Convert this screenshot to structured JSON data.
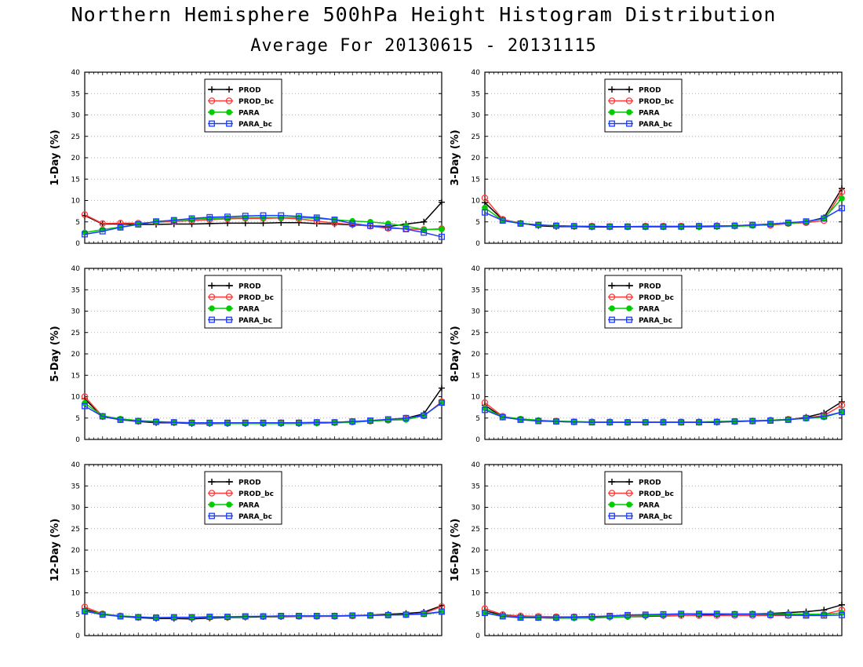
{
  "title": "Northern Hemisphere 500hPa Height Histogram Distribution",
  "subtitle": "Average For 20130615 - 20131115",
  "series_style": [
    {
      "name": "PROD",
      "color": "#000000",
      "marker": "plus"
    },
    {
      "name": "PROD_bc",
      "color": "#ff3b3b",
      "marker": "open-circle"
    },
    {
      "name": "PARA",
      "color": "#00cc00",
      "marker": "filled-circle"
    },
    {
      "name": "PARA_bc",
      "color": "#1e3cff",
      "marker": "open-square"
    }
  ],
  "chart_data": [
    {
      "type": "line",
      "ylabel": "1-Day (%)",
      "ylim": [
        0,
        40
      ],
      "yticks": [
        0,
        5,
        10,
        15,
        20,
        25,
        30,
        35,
        40
      ],
      "grid": true,
      "legend": "top-center",
      "x": [
        1,
        2,
        3,
        4,
        5,
        6,
        7,
        8,
        9,
        10,
        11,
        12,
        13,
        14,
        15,
        16,
        17,
        18,
        19,
        20,
        21
      ],
      "series": [
        {
          "name": "PROD",
          "values": [
            6.5,
            4.5,
            4.5,
            4.4,
            4.4,
            4.5,
            4.5,
            4.6,
            4.7,
            4.7,
            4.7,
            4.8,
            4.8,
            4.6,
            4.5,
            4.3,
            4.1,
            3.9,
            4.5,
            5.0,
            9.6
          ]
        },
        {
          "name": "PROD_bc",
          "values": [
            6.7,
            4.6,
            4.7,
            4.7,
            4.9,
            5.1,
            5.3,
            5.5,
            5.7,
            5.8,
            5.8,
            5.9,
            5.7,
            5.2,
            4.7,
            4.4,
            4.0,
            3.5,
            3.4,
            3.2,
            3.4
          ]
        },
        {
          "name": "PARA",
          "values": [
            2.5,
            3.2,
            3.8,
            4.5,
            5.0,
            5.4,
            5.6,
            5.8,
            5.9,
            6.0,
            6.0,
            6.0,
            6.0,
            5.8,
            5.5,
            5.2,
            5.0,
            4.6,
            4.0,
            3.2,
            3.3
          ]
        },
        {
          "name": "PARA_bc",
          "values": [
            2.1,
            2.8,
            3.7,
            4.4,
            5.1,
            5.4,
            5.8,
            6.1,
            6.2,
            6.4,
            6.5,
            6.5,
            6.3,
            6.0,
            5.5,
            4.6,
            4.1,
            3.7,
            3.3,
            2.5,
            1.5
          ]
        }
      ]
    },
    {
      "type": "line",
      "ylabel": "3-Day (%)",
      "ylim": [
        0,
        40
      ],
      "yticks": [
        0,
        5,
        10,
        15,
        20,
        25,
        30,
        35,
        40
      ],
      "grid": true,
      "legend": "top-center",
      "x": [
        1,
        2,
        3,
        4,
        5,
        6,
        7,
        8,
        9,
        10,
        11,
        12,
        13,
        14,
        15,
        16,
        17,
        18,
        19,
        20,
        21
      ],
      "series": [
        {
          "name": "PROD",
          "values": [
            9.5,
            5.5,
            4.7,
            4.1,
            3.9,
            3.9,
            3.8,
            3.8,
            3.8,
            3.8,
            3.8,
            3.8,
            3.8,
            3.9,
            4.0,
            4.2,
            4.5,
            4.7,
            5.0,
            6.0,
            12.8
          ]
        },
        {
          "name": "PROD_bc",
          "values": [
            10.6,
            5.6,
            4.6,
            4.3,
            4.1,
            4.0,
            4.0,
            3.9,
            3.9,
            4.0,
            4.0,
            4.0,
            4.0,
            4.1,
            4.1,
            4.3,
            4.2,
            4.6,
            4.8,
            5.3,
            12.0
          ]
        },
        {
          "name": "PARA",
          "values": [
            8.3,
            5.3,
            4.7,
            4.3,
            4.1,
            4.0,
            3.9,
            3.9,
            3.8,
            3.8,
            3.8,
            3.8,
            3.8,
            3.9,
            4.0,
            4.1,
            4.4,
            4.6,
            5.0,
            5.8,
            10.5
          ]
        },
        {
          "name": "PARA_bc",
          "values": [
            7.2,
            5.3,
            4.6,
            4.3,
            4.1,
            4.0,
            3.9,
            3.9,
            3.9,
            3.9,
            3.9,
            3.9,
            4.0,
            4.0,
            4.1,
            4.3,
            4.5,
            4.8,
            5.1,
            5.8,
            8.2
          ]
        }
      ]
    },
    {
      "type": "line",
      "ylabel": "5-Day (%)",
      "ylim": [
        0,
        40
      ],
      "yticks": [
        0,
        5,
        10,
        15,
        20,
        25,
        30,
        35,
        40
      ],
      "grid": true,
      "legend": "top-center",
      "x": [
        1,
        2,
        3,
        4,
        5,
        6,
        7,
        8,
        9,
        10,
        11,
        12,
        13,
        14,
        15,
        16,
        17,
        18,
        19,
        20,
        21
      ],
      "series": [
        {
          "name": "PROD",
          "values": [
            9.5,
            5.3,
            4.6,
            4.2,
            3.9,
            3.9,
            3.7,
            3.7,
            3.7,
            3.7,
            3.7,
            3.7,
            3.7,
            3.8,
            3.9,
            4.1,
            4.4,
            4.6,
            5.0,
            6.0,
            12.0
          ]
        },
        {
          "name": "PROD_bc",
          "values": [
            10.0,
            5.4,
            4.6,
            4.3,
            4.1,
            4.0,
            3.9,
            3.8,
            3.8,
            3.8,
            3.8,
            3.9,
            3.9,
            4.0,
            4.0,
            4.2,
            4.3,
            4.5,
            4.9,
            5.5,
            8.8
          ]
        },
        {
          "name": "PARA",
          "values": [
            8.5,
            5.5,
            4.8,
            4.4,
            4.2,
            4.0,
            3.8,
            3.8,
            3.7,
            3.7,
            3.7,
            3.7,
            3.7,
            3.8,
            3.9,
            4.0,
            4.3,
            4.5,
            4.6,
            5.6,
            8.6
          ]
        },
        {
          "name": "PARA_bc",
          "values": [
            7.8,
            5.4,
            4.6,
            4.3,
            4.1,
            4.0,
            3.9,
            3.9,
            3.9,
            3.9,
            3.9,
            3.9,
            3.9,
            4.0,
            4.0,
            4.2,
            4.4,
            4.7,
            5.0,
            5.6,
            8.6
          ]
        }
      ]
    },
    {
      "type": "line",
      "ylabel": "8-Day (%)",
      "ylim": [
        0,
        40
      ],
      "yticks": [
        0,
        5,
        10,
        15,
        20,
        25,
        30,
        35,
        40
      ],
      "grid": true,
      "legend": "top-center",
      "x": [
        1,
        2,
        3,
        4,
        5,
        6,
        7,
        8,
        9,
        10,
        11,
        12,
        13,
        14,
        15,
        16,
        17,
        18,
        19,
        20,
        21
      ],
      "series": [
        {
          "name": "PROD",
          "values": [
            8.0,
            5.2,
            4.7,
            4.4,
            4.2,
            4.1,
            4.1,
            4.0,
            4.0,
            4.0,
            4.0,
            4.0,
            4.0,
            4.0,
            4.2,
            4.3,
            4.4,
            4.6,
            5.2,
            6.2,
            8.8
          ]
        },
        {
          "name": "PROD_bc",
          "values": [
            8.6,
            5.4,
            4.7,
            4.4,
            4.3,
            4.1,
            4.1,
            4.1,
            4.0,
            4.0,
            4.1,
            4.1,
            4.1,
            4.1,
            4.2,
            4.3,
            4.5,
            4.7,
            5.0,
            5.6,
            8.0
          ]
        },
        {
          "name": "PARA",
          "values": [
            7.3,
            5.3,
            4.8,
            4.5,
            4.3,
            4.2,
            4.1,
            4.1,
            4.1,
            4.1,
            4.1,
            4.1,
            4.1,
            4.2,
            4.3,
            4.4,
            4.5,
            4.7,
            4.9,
            5.2,
            6.4
          ]
        },
        {
          "name": "PARA_bc",
          "values": [
            6.9,
            5.2,
            4.6,
            4.3,
            4.2,
            4.1,
            4.0,
            4.0,
            4.0,
            4.0,
            4.0,
            4.0,
            4.0,
            4.1,
            4.2,
            4.3,
            4.4,
            4.6,
            5.0,
            5.4,
            6.4
          ]
        }
      ]
    },
    {
      "type": "line",
      "ylabel": "12-Day (%)",
      "ylim": [
        0,
        40
      ],
      "yticks": [
        0,
        5,
        10,
        15,
        20,
        25,
        30,
        35,
        40
      ],
      "grid": true,
      "legend": "top-center",
      "x": [
        1,
        2,
        3,
        4,
        5,
        6,
        7,
        8,
        9,
        10,
        11,
        12,
        13,
        14,
        15,
        16,
        17,
        18,
        19,
        20,
        21
      ],
      "series": [
        {
          "name": "PROD",
          "values": [
            6.2,
            5.0,
            4.5,
            4.2,
            4.0,
            4.0,
            3.9,
            4.1,
            4.2,
            4.3,
            4.4,
            4.4,
            4.5,
            4.5,
            4.6,
            4.6,
            4.8,
            5.0,
            5.2,
            5.5,
            7.0
          ]
        },
        {
          "name": "PROD_bc",
          "values": [
            6.7,
            5.1,
            4.6,
            4.3,
            4.2,
            4.2,
            4.2,
            4.3,
            4.3,
            4.4,
            4.5,
            4.5,
            4.5,
            4.5,
            4.5,
            4.6,
            4.7,
            4.8,
            4.9,
            5.2,
            6.8
          ]
        },
        {
          "name": "PARA",
          "values": [
            5.8,
            5.1,
            4.6,
            4.4,
            4.2,
            4.2,
            4.2,
            4.3,
            4.3,
            4.4,
            4.5,
            4.5,
            4.6,
            4.6,
            4.6,
            4.7,
            4.8,
            4.8,
            4.9,
            5.0,
            5.5
          ]
        },
        {
          "name": "PARA_bc",
          "values": [
            5.7,
            4.9,
            4.5,
            4.3,
            4.2,
            4.3,
            4.3,
            4.4,
            4.4,
            4.5,
            4.5,
            4.6,
            4.6,
            4.6,
            4.6,
            4.7,
            4.7,
            4.8,
            4.9,
            5.1,
            5.6
          ]
        }
      ]
    },
    {
      "type": "line",
      "ylabel": "16-Day (%)",
      "ylim": [
        0,
        40
      ],
      "yticks": [
        0,
        5,
        10,
        15,
        20,
        25,
        30,
        35,
        40
      ],
      "grid": true,
      "legend": "top-center",
      "x": [
        1,
        2,
        3,
        4,
        5,
        6,
        7,
        8,
        9,
        10,
        11,
        12,
        13,
        14,
        15,
        16,
        17,
        18,
        19,
        20,
        21
      ],
      "series": [
        {
          "name": "PROD",
          "values": [
            5.8,
            4.8,
            4.4,
            4.2,
            4.1,
            4.1,
            4.2,
            4.3,
            4.4,
            4.5,
            4.6,
            4.7,
            4.8,
            4.9,
            5.0,
            5.1,
            5.2,
            5.4,
            5.6,
            6.0,
            7.2
          ]
        },
        {
          "name": "PROD_bc",
          "values": [
            6.3,
            4.9,
            4.6,
            4.5,
            4.4,
            4.4,
            4.5,
            4.5,
            4.6,
            4.7,
            4.7,
            4.7,
            4.7,
            4.7,
            4.7,
            4.7,
            4.7,
            4.7,
            4.8,
            5.0,
            6.0
          ]
        },
        {
          "name": "PARA",
          "values": [
            5.4,
            4.6,
            4.3,
            4.2,
            4.1,
            4.1,
            4.1,
            4.3,
            4.4,
            4.6,
            4.8,
            5.0,
            5.1,
            5.1,
            5.1,
            5.1,
            5.1,
            5.1,
            5.0,
            5.0,
            5.3
          ]
        },
        {
          "name": "PARA_bc",
          "values": [
            5.3,
            4.5,
            4.2,
            4.2,
            4.2,
            4.3,
            4.4,
            4.6,
            4.8,
            4.9,
            5.0,
            5.1,
            5.1,
            5.1,
            5.0,
            5.0,
            4.9,
            4.8,
            4.7,
            4.7,
            4.8
          ]
        }
      ]
    }
  ]
}
